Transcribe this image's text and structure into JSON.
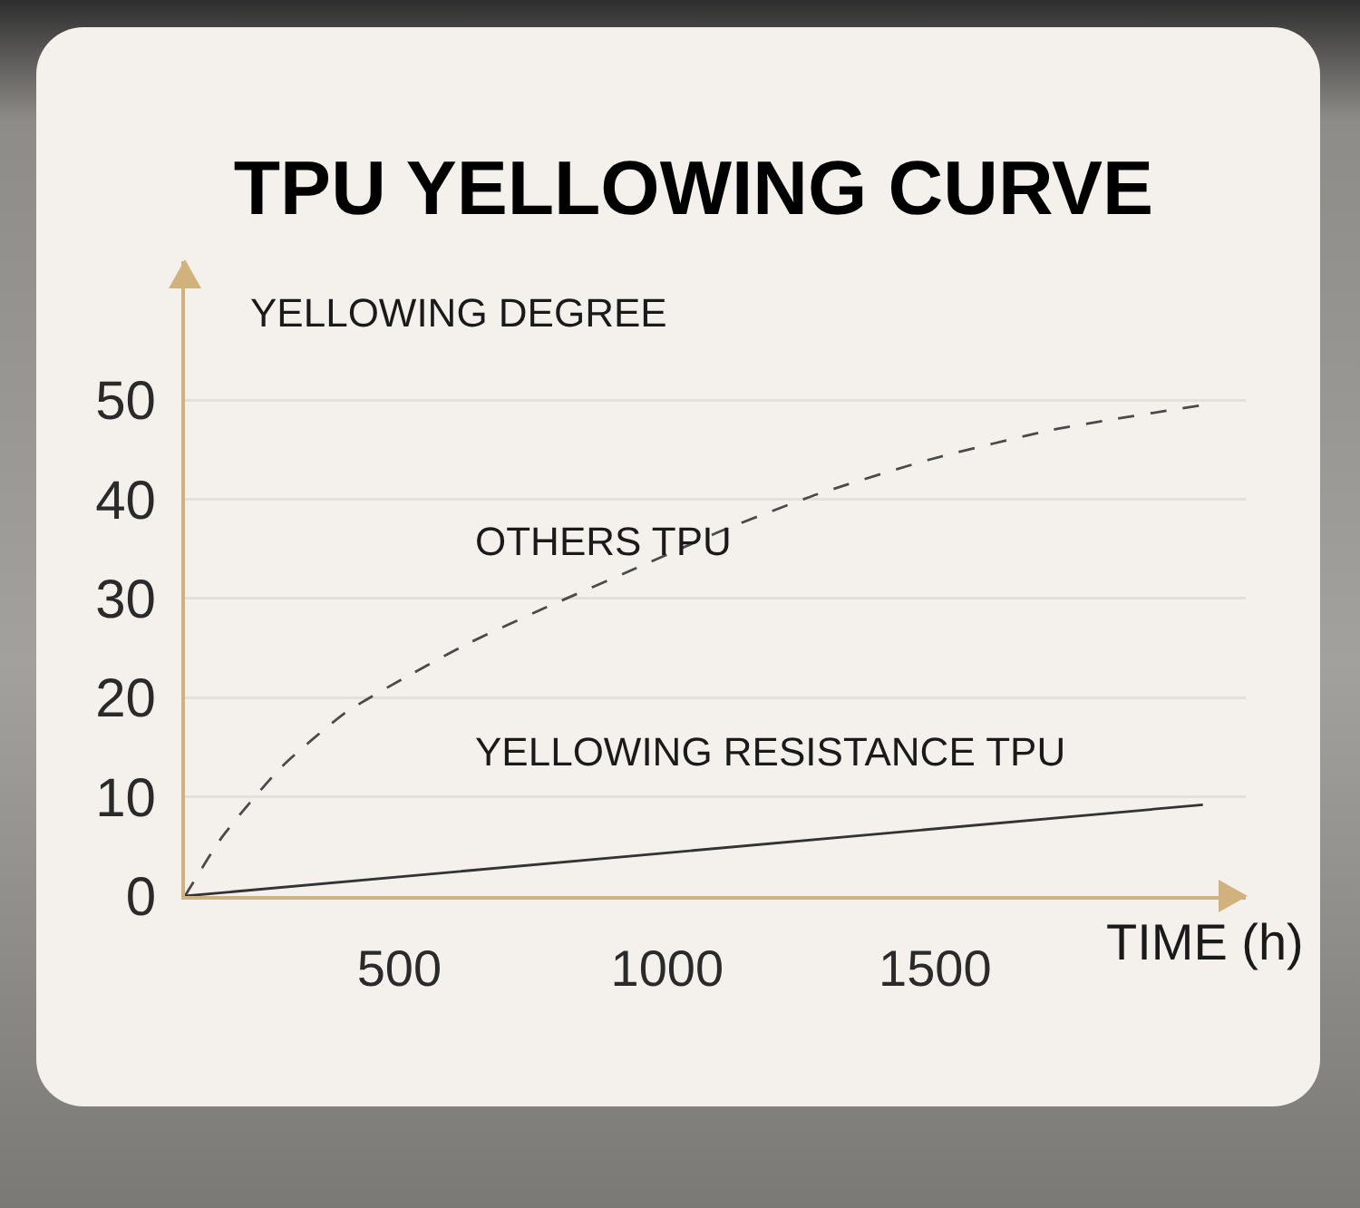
{
  "chart_data": {
    "type": "line",
    "title": "TPU YELLOWING CURVE",
    "xlabel": "TIME (h)",
    "ylabel": "YELLOWING DEGREE",
    "series": [
      {
        "name": "OTHERS TPU",
        "color": "#4a4a4a",
        "line_style": "dashed",
        "x": [
          100,
          170,
          280,
          400,
          510,
          630,
          770,
          940,
          1110,
          1280,
          1490,
          1720,
          2000
        ],
        "values": [
          0,
          6,
          13,
          18.5,
          22,
          25.5,
          29,
          33,
          37,
          40.5,
          44,
          47,
          49.5
        ]
      },
      {
        "name": "YELLOWING RESISTANCE TPU",
        "color": "#333333",
        "line_style": "solid",
        "x": [
          100,
          2000
        ],
        "values": [
          0,
          9.2
        ]
      }
    ],
    "xlim": [
      100,
      2080
    ],
    "xticks": [
      500,
      1000,
      1500
    ],
    "ylim": [
      0,
      64
    ],
    "yticks": [
      0,
      10,
      20,
      30,
      40,
      50
    ],
    "grid": "y"
  }
}
